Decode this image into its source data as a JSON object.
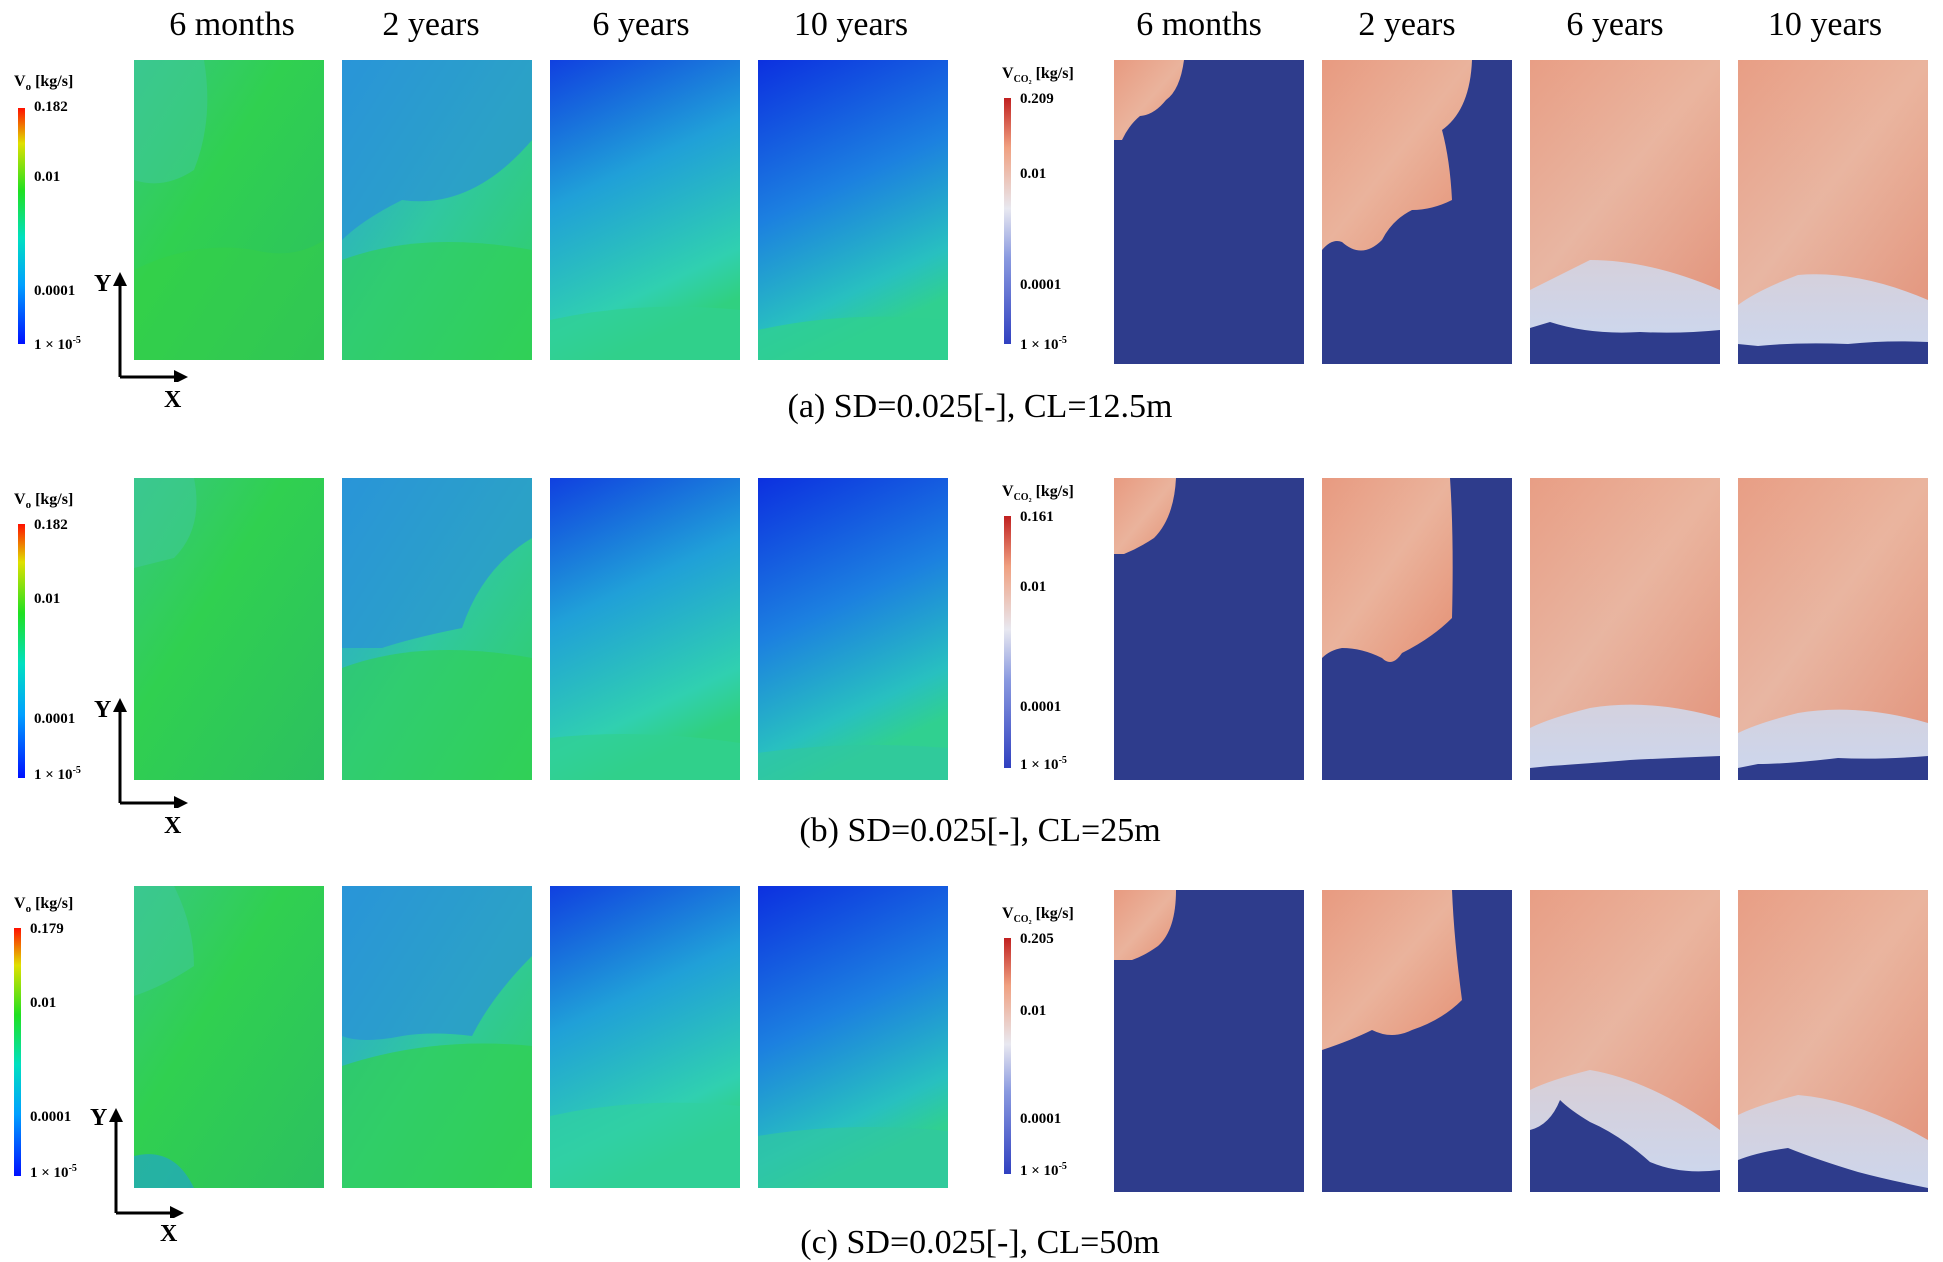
{
  "headers": {
    "left": [
      "6 months",
      "2 years",
      "6 years",
      "10 years"
    ],
    "right": [
      "6 months",
      "2 years",
      "6 years",
      "10 years"
    ]
  },
  "rows": [
    {
      "caption": "(a) SD=0.025[-], CL=12.5m",
      "vo_legend": {
        "title": "V",
        "sub": "o",
        "unit": " [kg/s]",
        "max": "0.182",
        "mid": "0.01",
        "low": "0.0001",
        "min": "1 × 10",
        "min_exp": "-5"
      },
      "vco2_legend": {
        "title": "V",
        "sub": "CO₂",
        "unit": " [kg/s]",
        "max": "0.209",
        "mid": "0.01",
        "low": "0.0001",
        "min": "1 × 10",
        "min_exp": "-5"
      },
      "axis_y": "Y",
      "axis_x": "X"
    },
    {
      "caption": "(b) SD=0.025[-], CL=25m",
      "vo_legend": {
        "title": "V",
        "sub": "o",
        "unit": " [kg/s]",
        "max": "0.182",
        "mid": "0.01",
        "low": "0.0001",
        "min": "1 × 10",
        "min_exp": "-5"
      },
      "vco2_legend": {
        "title": "V",
        "sub": "CO₂",
        "unit": " [kg/s]",
        "max": "0.161",
        "mid": "0.01",
        "low": "0.0001",
        "min": "1 × 10",
        "min_exp": "-5"
      },
      "axis_y": "Y",
      "axis_x": "X"
    },
    {
      "caption": "(c) SD=0.025[-], CL=50m",
      "vo_legend": {
        "title": "V",
        "sub": "o",
        "unit": " [kg/s]",
        "max": "0.179",
        "mid": "0.01",
        "low": "0.0001",
        "min": "1 × 10",
        "min_exp": "-5"
      },
      "vco2_legend": {
        "title": "V",
        "sub": "CO₂",
        "unit": " [kg/s]",
        "max": "0.205",
        "mid": "0.01",
        "low": "0.0001",
        "min": "1 × 10",
        "min_exp": "-5"
      },
      "axis_y": "Y",
      "axis_x": "X"
    }
  ],
  "colors": {
    "oil_green": "#2fd24a",
    "oil_cyan": "#2fd8b0",
    "oil_blue": "#1040e0",
    "co2_fill": "#e9a184",
    "co2_light": "#d9dbe8",
    "co2_bg": "#2e3c8c"
  }
}
